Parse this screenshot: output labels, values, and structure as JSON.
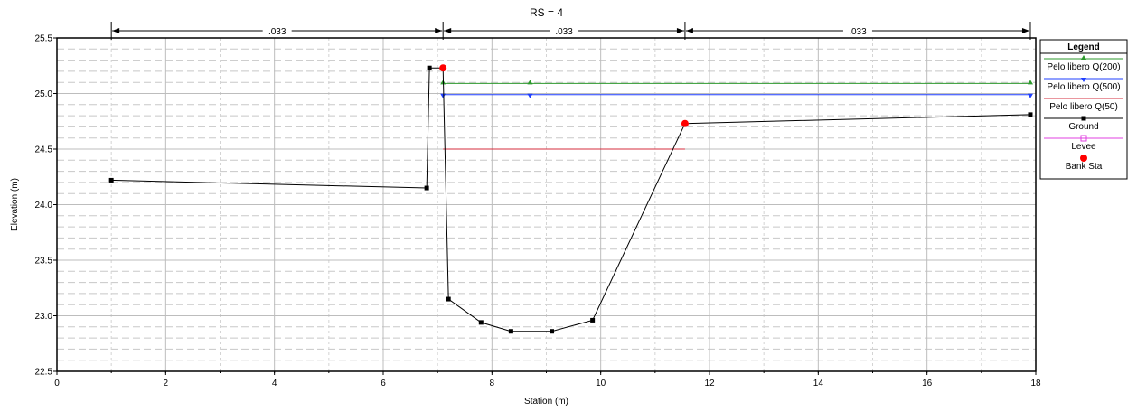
{
  "chart_data": {
    "type": "line",
    "title": "RS = 4",
    "xlabel": "Station (m)",
    "ylabel": "Elevation (m)",
    "xlim": [
      0,
      18
    ],
    "ylim": [
      22.5,
      25.5
    ],
    "x_ticks": [
      "0",
      "2",
      "4",
      "6",
      "8",
      "10",
      "12",
      "14",
      "16",
      "18"
    ],
    "y_ticks": [
      "22.5",
      "23.0",
      "23.5",
      "24.0",
      "24.5",
      "25.0",
      "25.5"
    ],
    "grid": true,
    "manning": {
      "stations": [
        1.0,
        7.1,
        11.55,
        17.9
      ],
      "labels": [
        ".033",
        ".033",
        ".033"
      ]
    },
    "series": [
      {
        "name": "Pelo libero Q(200)",
        "color": "#2e9a2e",
        "marker": "triangle-up",
        "x": [
          7.1,
          17.9
        ],
        "y": [
          25.09,
          25.09
        ],
        "marker_x": [
          7.1,
          8.7,
          17.9
        ]
      },
      {
        "name": "Pelo libero Q(500)",
        "color": "#1f3fff",
        "marker": "triangle-down",
        "x": [
          7.1,
          17.9
        ],
        "y": [
          24.99,
          24.99
        ],
        "marker_x": [
          7.1,
          8.7,
          17.9
        ]
      },
      {
        "name": "Pelo libero Q(50)",
        "color": "#d62c3c",
        "marker": "none",
        "x": [
          7.1,
          11.55
        ],
        "y": [
          24.5,
          24.5
        ]
      },
      {
        "name": "Ground",
        "color": "#000000",
        "marker": "square",
        "x": [
          1.0,
          6.8,
          6.85,
          7.1,
          7.2,
          7.8,
          8.35,
          9.1,
          9.85,
          11.55,
          17.9
        ],
        "y": [
          24.22,
          24.15,
          25.23,
          25.23,
          23.15,
          22.94,
          22.86,
          22.86,
          22.96,
          24.73,
          24.81
        ]
      },
      {
        "name": "Levee",
        "color": "#e040e0",
        "marker": "square-open",
        "x": [],
        "y": []
      },
      {
        "name": "Bank Sta",
        "color": "#ff0000",
        "marker": "circle",
        "x": [
          7.1,
          11.55
        ],
        "y": [
          25.23,
          24.73
        ]
      }
    ],
    "legend": {
      "title": "Legend",
      "position": "right"
    }
  }
}
